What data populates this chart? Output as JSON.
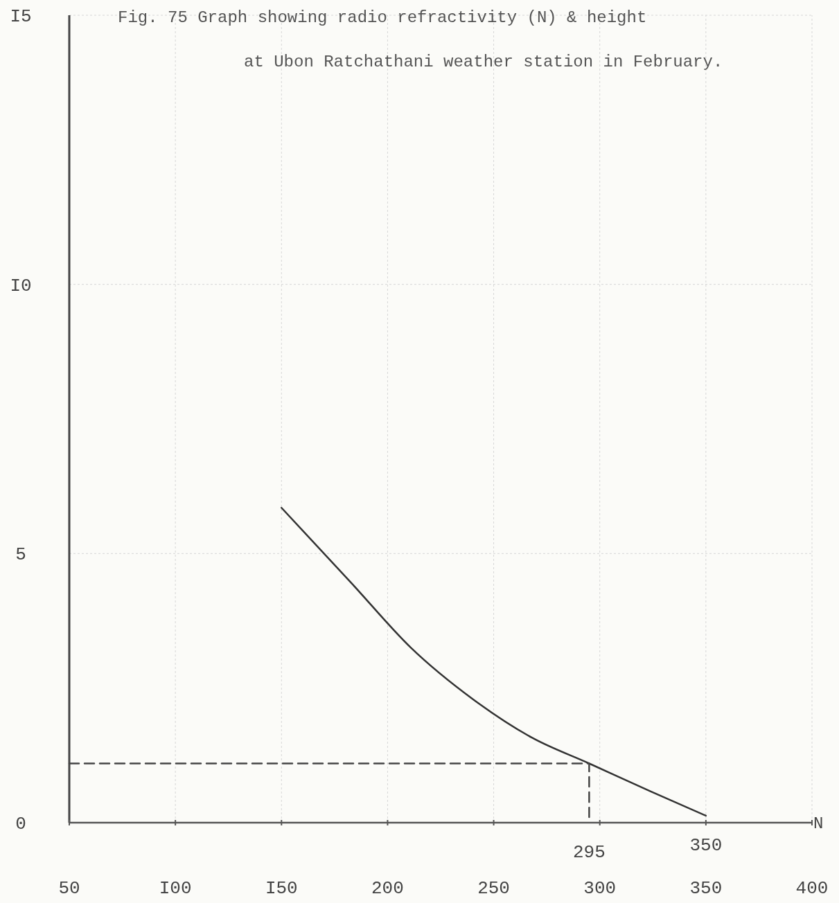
{
  "chart_data": {
    "type": "line",
    "title": "Fig. 75 Graph showing radio refractivity (N) & height at Ubon Ratchathani weather station in February.",
    "xlabel": "N",
    "xlim": [
      50,
      400
    ],
    "xticks": [
      50,
      {
        "value": 100,
        "label": "I00"
      },
      {
        "value": 150,
        "label": "I50"
      },
      200,
      250,
      300,
      350,
      400
    ],
    "ylim": [
      0,
      15
    ],
    "yticks": [
      0,
      5,
      {
        "value": 10,
        "label": "I0"
      },
      {
        "value": 15,
        "label": "I5"
      }
    ],
    "grid": true,
    "marker": "none",
    "series": [
      {
        "color": "#333333",
        "line_style": "solid",
        "x": [
          150,
          183,
          211,
          240,
          268,
          295,
          324,
          350
        ],
        "values": [
          5.85,
          4.45,
          3.25,
          2.3,
          1.58,
          1.1,
          0.58,
          0.13
        ]
      },
      {
        "color": "#444444",
        "line_style": "dashed",
        "x": [
          50,
          295,
          295
        ],
        "values": [
          1.1,
          1.1,
          0
        ]
      }
    ],
    "annotations": [
      {
        "text": "295",
        "x": 295,
        "y": 0
      },
      {
        "text": "350",
        "x": 350,
        "y": 0.13
      }
    ]
  }
}
